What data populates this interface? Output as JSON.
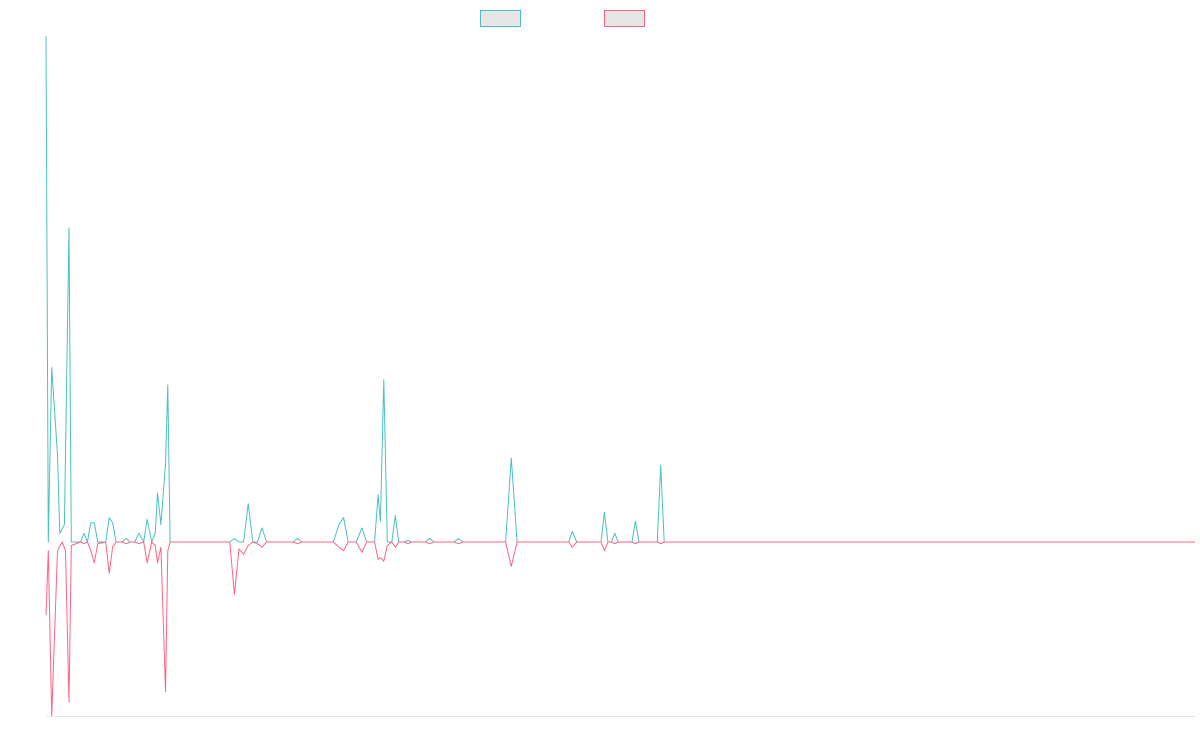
{
  "chart_data": {
    "type": "line",
    "title": "",
    "xlabel": "",
    "ylabel": "",
    "grid": false,
    "legend_placement": "top-center",
    "xlim": [
      0,
      100
    ],
    "ylim": [
      -100,
      290
    ],
    "colors": {
      "positive": "#4bc0c0",
      "negative": "#ff6384",
      "swatch_fill": "#e6e6e6",
      "axis": "#e6e6e6"
    },
    "series": [
      {
        "name": "",
        "color": "#4bc0c0",
        "points": [
          [
            0.0,
            290
          ],
          [
            0.2,
            0
          ],
          [
            0.5,
            100
          ],
          [
            1.0,
            50
          ],
          [
            1.2,
            5
          ],
          [
            1.6,
            10
          ],
          [
            2.0,
            180
          ],
          [
            2.2,
            0
          ],
          [
            3.0,
            0
          ],
          [
            3.3,
            5
          ],
          [
            3.6,
            0
          ],
          [
            3.9,
            11
          ],
          [
            4.2,
            11
          ],
          [
            4.5,
            0
          ],
          [
            5.2,
            0
          ],
          [
            5.5,
            14
          ],
          [
            5.8,
            11
          ],
          [
            6.1,
            0
          ],
          [
            6.6,
            0
          ],
          [
            7.0,
            2
          ],
          [
            7.3,
            0
          ],
          [
            7.7,
            0
          ],
          [
            8.1,
            5
          ],
          [
            8.5,
            0
          ],
          [
            8.8,
            13
          ],
          [
            9.2,
            0
          ],
          [
            9.5,
            5
          ],
          [
            9.7,
            28
          ],
          [
            10.0,
            10
          ],
          [
            10.4,
            45
          ],
          [
            10.6,
            90
          ],
          [
            10.8,
            0
          ],
          [
            16.0,
            0
          ],
          [
            16.4,
            2
          ],
          [
            16.8,
            0
          ],
          [
            17.2,
            0
          ],
          [
            17.6,
            22
          ],
          [
            18.0,
            0
          ],
          [
            18.4,
            0
          ],
          [
            18.8,
            8
          ],
          [
            19.2,
            0
          ],
          [
            21.5,
            0
          ],
          [
            21.9,
            2
          ],
          [
            22.3,
            0
          ],
          [
            25.0,
            0
          ],
          [
            25.5,
            10
          ],
          [
            25.9,
            14
          ],
          [
            26.3,
            0
          ],
          [
            27.0,
            0
          ],
          [
            27.5,
            8
          ],
          [
            27.9,
            0
          ],
          [
            28.6,
            0
          ],
          [
            28.9,
            27
          ],
          [
            29.1,
            12
          ],
          [
            29.4,
            93
          ],
          [
            29.7,
            0
          ],
          [
            30.1,
            0
          ],
          [
            30.4,
            15
          ],
          [
            30.7,
            0
          ],
          [
            31.2,
            0
          ],
          [
            31.5,
            1
          ],
          [
            31.8,
            0
          ],
          [
            33.0,
            0
          ],
          [
            33.4,
            2
          ],
          [
            33.8,
            0
          ],
          [
            35.5,
            0
          ],
          [
            35.9,
            2
          ],
          [
            36.3,
            0
          ],
          [
            40.0,
            0
          ],
          [
            40.5,
            48
          ],
          [
            41.0,
            0
          ],
          [
            45.5,
            0
          ],
          [
            45.8,
            6
          ],
          [
            46.2,
            0
          ],
          [
            48.3,
            0
          ],
          [
            48.6,
            17
          ],
          [
            48.9,
            0
          ],
          [
            49.2,
            0
          ],
          [
            49.5,
            5
          ],
          [
            49.8,
            0
          ],
          [
            51.0,
            0
          ],
          [
            51.3,
            12
          ],
          [
            51.6,
            0
          ],
          [
            53.2,
            0
          ],
          [
            53.5,
            44
          ],
          [
            53.8,
            0
          ],
          [
            100,
            0
          ]
        ]
      },
      {
        "name": "",
        "color": "#ff6384",
        "points": [
          [
            0.0,
            -42
          ],
          [
            0.2,
            -5
          ],
          [
            0.5,
            -100
          ],
          [
            1.0,
            -5
          ],
          [
            1.4,
            0
          ],
          [
            1.7,
            -5
          ],
          [
            2.0,
            -92
          ],
          [
            2.2,
            -2
          ],
          [
            3.0,
            0
          ],
          [
            3.3,
            -1
          ],
          [
            3.6,
            0
          ],
          [
            3.9,
            -5
          ],
          [
            4.2,
            -12
          ],
          [
            4.5,
            -1
          ],
          [
            5.2,
            0
          ],
          [
            5.5,
            -18
          ],
          [
            5.8,
            -3
          ],
          [
            6.1,
            0
          ],
          [
            6.6,
            0
          ],
          [
            7.0,
            -1
          ],
          [
            7.3,
            0
          ],
          [
            7.7,
            0
          ],
          [
            8.1,
            -1
          ],
          [
            8.5,
            0
          ],
          [
            8.8,
            -12
          ],
          [
            9.2,
            0
          ],
          [
            9.5,
            -2
          ],
          [
            9.7,
            -12
          ],
          [
            10.0,
            -3
          ],
          [
            10.4,
            -86
          ],
          [
            10.6,
            -5
          ],
          [
            10.8,
            0
          ],
          [
            16.0,
            0
          ],
          [
            16.4,
            -30
          ],
          [
            16.8,
            -4
          ],
          [
            17.2,
            -7
          ],
          [
            17.6,
            -2
          ],
          [
            18.0,
            0
          ],
          [
            18.4,
            -1
          ],
          [
            18.8,
            -3
          ],
          [
            19.2,
            0
          ],
          [
            21.5,
            0
          ],
          [
            21.9,
            -1
          ],
          [
            22.3,
            0
          ],
          [
            25.0,
            0
          ],
          [
            25.5,
            -3
          ],
          [
            25.9,
            -5
          ],
          [
            26.3,
            0
          ],
          [
            27.0,
            0
          ],
          [
            27.5,
            -6
          ],
          [
            27.9,
            0
          ],
          [
            28.6,
            0
          ],
          [
            28.9,
            -10
          ],
          [
            29.1,
            -9
          ],
          [
            29.4,
            -11
          ],
          [
            29.7,
            -2
          ],
          [
            30.1,
            0
          ],
          [
            30.4,
            -3
          ],
          [
            30.7,
            0
          ],
          [
            31.2,
            0
          ],
          [
            31.5,
            -1
          ],
          [
            31.8,
            0
          ],
          [
            33.0,
            0
          ],
          [
            33.4,
            -1
          ],
          [
            33.8,
            0
          ],
          [
            35.5,
            0
          ],
          [
            35.9,
            -1
          ],
          [
            36.3,
            0
          ],
          [
            40.0,
            0
          ],
          [
            40.5,
            -14
          ],
          [
            41.0,
            0
          ],
          [
            45.5,
            0
          ],
          [
            45.8,
            -3
          ],
          [
            46.2,
            0
          ],
          [
            48.3,
            0
          ],
          [
            48.6,
            -5
          ],
          [
            48.9,
            0
          ],
          [
            49.2,
            0
          ],
          [
            49.5,
            -1
          ],
          [
            49.8,
            0
          ],
          [
            51.0,
            0
          ],
          [
            51.3,
            -1
          ],
          [
            51.6,
            0
          ],
          [
            53.2,
            0
          ],
          [
            53.5,
            -1
          ],
          [
            53.8,
            0
          ],
          [
            100,
            0
          ]
        ]
      }
    ],
    "legend": [
      {
        "label": "",
        "color": "#4bc0c0"
      },
      {
        "label": "",
        "color": "#ff6384"
      }
    ]
  }
}
